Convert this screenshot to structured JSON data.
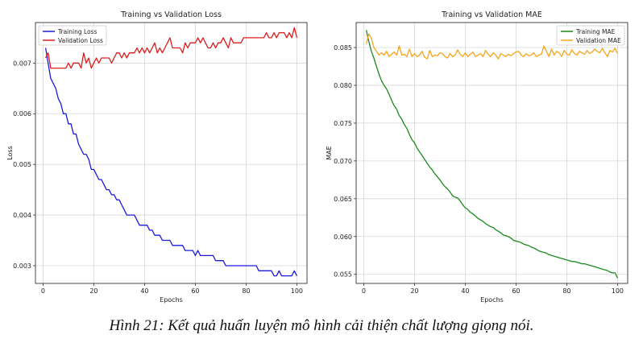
{
  "caption": "Hình 21: Kết quả huấn luyện mô hình cải thiện chất lượng giọng nói.",
  "chart_data": [
    {
      "type": "line",
      "title": "Training vs Validation Loss",
      "xlabel": "Epochs",
      "ylabel": "Loss",
      "xlim": [
        -3,
        104
      ],
      "ylim": [
        0.00265,
        0.0078
      ],
      "xticks": [
        0,
        20,
        40,
        60,
        80,
        100
      ],
      "yticks": [
        0.003,
        0.004,
        0.005,
        0.006,
        0.007
      ],
      "ytick_labels": [
        "0.003",
        "0.004",
        "0.005",
        "0.006",
        "0.007"
      ],
      "grid": true,
      "legend": "upper-left",
      "series": [
        {
          "name": "Training Loss",
          "color": "#1a1ae0",
          "x": [
            1,
            2,
            3,
            4,
            5,
            6,
            7,
            8,
            9,
            10,
            11,
            12,
            13,
            14,
            15,
            16,
            17,
            18,
            19,
            20,
            21,
            22,
            23,
            24,
            25,
            26,
            27,
            28,
            29,
            30,
            31,
            32,
            33,
            34,
            35,
            36,
            37,
            38,
            39,
            40,
            41,
            42,
            43,
            44,
            45,
            46,
            47,
            48,
            49,
            50,
            51,
            52,
            53,
            54,
            55,
            56,
            57,
            58,
            59,
            60,
            61,
            62,
            63,
            64,
            65,
            66,
            67,
            68,
            69,
            70,
            71,
            72,
            73,
            74,
            75,
            76,
            77,
            78,
            79,
            80,
            81,
            82,
            83,
            84,
            85,
            86,
            87,
            88,
            89,
            90,
            91,
            92,
            93,
            94,
            95,
            96,
            97,
            98,
            99,
            100
          ],
          "y": [
            0.0073,
            0.007,
            0.0067,
            0.0066,
            0.0065,
            0.0063,
            0.0062,
            0.006,
            0.006,
            0.0058,
            0.0058,
            0.0056,
            0.0056,
            0.0054,
            0.0053,
            0.0052,
            0.0052,
            0.0051,
            0.0049,
            0.0049,
            0.0048,
            0.0047,
            0.0047,
            0.0046,
            0.0045,
            0.0045,
            0.0044,
            0.0044,
            0.0043,
            0.0043,
            0.0042,
            0.0041,
            0.004,
            0.004,
            0.004,
            0.004,
            0.0039,
            0.0038,
            0.0038,
            0.0038,
            0.0038,
            0.0037,
            0.0037,
            0.0036,
            0.0036,
            0.0036,
            0.0035,
            0.0035,
            0.0035,
            0.0035,
            0.0034,
            0.0034,
            0.0034,
            0.0034,
            0.0034,
            0.0033,
            0.0033,
            0.0033,
            0.0033,
            0.0032,
            0.0033,
            0.0032,
            0.0032,
            0.0032,
            0.0032,
            0.0032,
            0.0032,
            0.0031,
            0.0031,
            0.0031,
            0.0031,
            0.003,
            0.003,
            0.003,
            0.003,
            0.003,
            0.003,
            0.003,
            0.003,
            0.003,
            0.003,
            0.003,
            0.003,
            0.003,
            0.0029,
            0.0029,
            0.0029,
            0.0029,
            0.0029,
            0.0029,
            0.0028,
            0.0028,
            0.0029,
            0.0028,
            0.0028,
            0.0028,
            0.0028,
            0.0028,
            0.0029,
            0.0028
          ]
        },
        {
          "name": "Validation Loss",
          "color": "#dd1c1c",
          "x": [
            1,
            2,
            3,
            4,
            5,
            6,
            7,
            8,
            9,
            10,
            11,
            12,
            13,
            14,
            15,
            16,
            17,
            18,
            19,
            20,
            21,
            22,
            23,
            24,
            25,
            26,
            27,
            28,
            29,
            30,
            31,
            32,
            33,
            34,
            35,
            36,
            37,
            38,
            39,
            40,
            41,
            42,
            43,
            44,
            45,
            46,
            47,
            48,
            49,
            50,
            51,
            52,
            53,
            54,
            55,
            56,
            57,
            58,
            59,
            60,
            61,
            62,
            63,
            64,
            65,
            66,
            67,
            68,
            69,
            70,
            71,
            72,
            73,
            74,
            75,
            76,
            77,
            78,
            79,
            80,
            81,
            82,
            83,
            84,
            85,
            86,
            87,
            88,
            89,
            90,
            91,
            92,
            93,
            94,
            95,
            96,
            97,
            98,
            99,
            100
          ],
          "y": [
            0.0071,
            0.0072,
            0.0069,
            0.0069,
            0.0069,
            0.0069,
            0.0069,
            0.0069,
            0.0069,
            0.007,
            0.0069,
            0.007,
            0.007,
            0.007,
            0.0069,
            0.0072,
            0.007,
            0.0071,
            0.0069,
            0.007,
            0.0071,
            0.007,
            0.0071,
            0.0071,
            0.0071,
            0.0071,
            0.007,
            0.0071,
            0.0072,
            0.0072,
            0.0071,
            0.0072,
            0.0071,
            0.0072,
            0.0072,
            0.0072,
            0.0073,
            0.0072,
            0.0073,
            0.0072,
            0.0073,
            0.0072,
            0.0073,
            0.0074,
            0.0072,
            0.0073,
            0.0072,
            0.0073,
            0.0074,
            0.0075,
            0.0073,
            0.0073,
            0.0073,
            0.0073,
            0.0072,
            0.0074,
            0.0073,
            0.0074,
            0.0074,
            0.0074,
            0.0075,
            0.0074,
            0.0075,
            0.0074,
            0.0073,
            0.0073,
            0.0074,
            0.0073,
            0.0074,
            0.0074,
            0.0075,
            0.0074,
            0.0073,
            0.0075,
            0.0074,
            0.0074,
            0.0074,
            0.0074,
            0.0075,
            0.0075,
            0.0075,
            0.0075,
            0.0075,
            0.0075,
            0.0075,
            0.0075,
            0.0075,
            0.0076,
            0.0075,
            0.0075,
            0.0076,
            0.0075,
            0.0076,
            0.0076,
            0.0076,
            0.0075,
            0.0076,
            0.0075,
            0.0077,
            0.0075
          ]
        }
      ]
    },
    {
      "type": "line",
      "title": "Training vs Validation MAE",
      "xlabel": "Epochs",
      "ylabel": "MAE",
      "xlim": [
        -3,
        104
      ],
      "ylim": [
        0.0538,
        0.0883
      ],
      "xticks": [
        0,
        20,
        40,
        60,
        80,
        100
      ],
      "yticks": [
        0.055,
        0.06,
        0.065,
        0.07,
        0.075,
        0.08,
        0.085
      ],
      "ytick_labels": [
        "0.055",
        "0.060",
        "0.065",
        "0.070",
        "0.075",
        "0.080",
        "0.085"
      ],
      "grid": true,
      "legend": "upper-right",
      "series": [
        {
          "name": "Training MAE",
          "color": "#1b8a1b",
          "x": [
            1,
            2,
            3,
            4,
            5,
            6,
            7,
            8,
            9,
            10,
            11,
            12,
            13,
            14,
            15,
            16,
            17,
            18,
            19,
            20,
            21,
            22,
            23,
            24,
            25,
            26,
            27,
            28,
            29,
            30,
            31,
            32,
            33,
            34,
            35,
            36,
            37,
            38,
            39,
            40,
            41,
            42,
            43,
            44,
            45,
            46,
            47,
            48,
            49,
            50,
            51,
            52,
            53,
            54,
            55,
            56,
            57,
            58,
            59,
            60,
            61,
            62,
            63,
            64,
            65,
            66,
            67,
            68,
            69,
            70,
            71,
            72,
            73,
            74,
            75,
            76,
            77,
            78,
            79,
            80,
            81,
            82,
            83,
            84,
            85,
            86,
            87,
            88,
            89,
            90,
            91,
            92,
            93,
            94,
            95,
            96,
            97,
            98,
            99,
            100
          ],
          "y": [
            0.0873,
            0.0858,
            0.0845,
            0.0836,
            0.0825,
            0.0815,
            0.0806,
            0.08,
            0.0795,
            0.0788,
            0.078,
            0.0773,
            0.0768,
            0.076,
            0.0755,
            0.0748,
            0.0743,
            0.0735,
            0.0728,
            0.0724,
            0.0717,
            0.0712,
            0.0707,
            0.0702,
            0.0697,
            0.0692,
            0.0688,
            0.0683,
            0.0679,
            0.0675,
            0.067,
            0.0666,
            0.0663,
            0.0659,
            0.0654,
            0.0652,
            0.0651,
            0.0647,
            0.0642,
            0.0638,
            0.0636,
            0.0632,
            0.063,
            0.0627,
            0.0624,
            0.0622,
            0.062,
            0.0617,
            0.0615,
            0.0613,
            0.0612,
            0.0609,
            0.0607,
            0.0605,
            0.0602,
            0.0601,
            0.06,
            0.0598,
            0.0595,
            0.0594,
            0.0593,
            0.0592,
            0.059,
            0.0589,
            0.0588,
            0.0586,
            0.0585,
            0.0583,
            0.0581,
            0.058,
            0.0579,
            0.0578,
            0.0576,
            0.0575,
            0.0574,
            0.0573,
            0.0572,
            0.0571,
            0.057,
            0.0569,
            0.0568,
            0.0567,
            0.0567,
            0.0566,
            0.0565,
            0.0564,
            0.0564,
            0.0563,
            0.0562,
            0.0561,
            0.056,
            0.0559,
            0.0558,
            0.0557,
            0.0556,
            0.0555,
            0.0553,
            0.0552,
            0.0552,
            0.0545
          ]
        },
        {
          "name": "Validation MAE",
          "color": "#f5a51c",
          "x": [
            1,
            2,
            3,
            4,
            5,
            6,
            7,
            8,
            9,
            10,
            11,
            12,
            13,
            14,
            15,
            16,
            17,
            18,
            19,
            20,
            21,
            22,
            23,
            24,
            25,
            26,
            27,
            28,
            29,
            30,
            31,
            32,
            33,
            34,
            35,
            36,
            37,
            38,
            39,
            40,
            41,
            42,
            43,
            44,
            45,
            46,
            47,
            48,
            49,
            50,
            51,
            52,
            53,
            54,
            55,
            56,
            57,
            58,
            59,
            60,
            61,
            62,
            63,
            64,
            65,
            66,
            67,
            68,
            69,
            70,
            71,
            72,
            73,
            74,
            75,
            76,
            77,
            78,
            79,
            80,
            81,
            82,
            83,
            84,
            85,
            86,
            87,
            88,
            89,
            90,
            91,
            92,
            93,
            94,
            95,
            96,
            97,
            98,
            99,
            100
          ],
          "y": [
            0.0855,
            0.0868,
            0.0862,
            0.085,
            0.0845,
            0.084,
            0.0843,
            0.084,
            0.0845,
            0.0838,
            0.0841,
            0.0844,
            0.084,
            0.0852,
            0.084,
            0.0841,
            0.0838,
            0.0848,
            0.0838,
            0.0842,
            0.0838,
            0.084,
            0.0845,
            0.0837,
            0.0835,
            0.0846,
            0.0838,
            0.084,
            0.0839,
            0.0843,
            0.0842,
            0.0838,
            0.0836,
            0.0842,
            0.0838,
            0.084,
            0.0847,
            0.0841,
            0.0838,
            0.0843,
            0.0838,
            0.0841,
            0.0844,
            0.0838,
            0.084,
            0.0842,
            0.0838,
            0.0846,
            0.0841,
            0.0838,
            0.0843,
            0.084,
            0.0835,
            0.0842,
            0.084,
            0.0838,
            0.0841,
            0.0839,
            0.0842,
            0.0844,
            0.0845,
            0.084,
            0.0838,
            0.0842,
            0.0839,
            0.084,
            0.0843,
            0.0838,
            0.084,
            0.0841,
            0.0852,
            0.0845,
            0.0838,
            0.0848,
            0.084,
            0.0845,
            0.0843,
            0.0838,
            0.0846,
            0.0841,
            0.084,
            0.0847,
            0.0842,
            0.084,
            0.0845,
            0.0843,
            0.0841,
            0.0846,
            0.0842,
            0.0844,
            0.0848,
            0.0845,
            0.0843,
            0.0849,
            0.0843,
            0.0838,
            0.0846,
            0.0844,
            0.0849,
            0.0842
          ]
        }
      ]
    }
  ]
}
